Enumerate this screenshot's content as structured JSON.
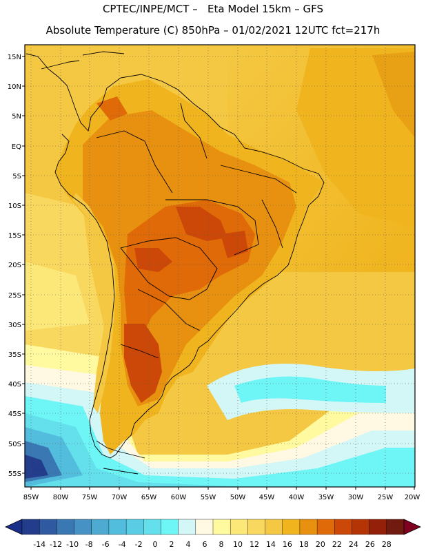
{
  "header": {
    "line1": "CPTEC/INPE/MCT –   Eta Model 15km – GFS",
    "line2": "Absolute Temperature (C) 850hPa – 01/02/2021 12UTC fct=217h"
  },
  "map": {
    "region": "South America",
    "lat_labels": [
      "15N",
      "10N",
      "5N",
      "EQ",
      "5S",
      "10S",
      "15S",
      "20S",
      "25S",
      "30S",
      "35S",
      "40S",
      "45S",
      "50S",
      "55S"
    ],
    "lon_labels": [
      "85W",
      "80W",
      "75W",
      "70W",
      "65W",
      "60W",
      "55W",
      "50W",
      "45W",
      "40W",
      "35W",
      "30W",
      "25W",
      "20W"
    ]
  },
  "colorbar": {
    "labels": [
      "-14",
      "-12",
      "-10",
      "-8",
      "-6",
      "-4",
      "-2",
      "0",
      "2",
      "4",
      "6",
      "8",
      "10",
      "12",
      "14",
      "16",
      "18",
      "20",
      "22",
      "24",
      "26",
      "28"
    ],
    "low_color": "#1a2f8a",
    "high_color": "#800020",
    "colors": [
      "#243c8c",
      "#2f5aa2",
      "#3a78b4",
      "#4692c4",
      "#4faad2",
      "#52bddc",
      "#5acde4",
      "#63e0ec",
      "#6ef5f5",
      "#d3f6f6",
      "#fff8e2",
      "#fffaa0",
      "#fbe878",
      "#f9d860",
      "#f4c842",
      "#f0b41e",
      "#e89010",
      "#e06a08",
      "#cc4808",
      "#b53406",
      "#94200a",
      "#701a10"
    ]
  }
}
